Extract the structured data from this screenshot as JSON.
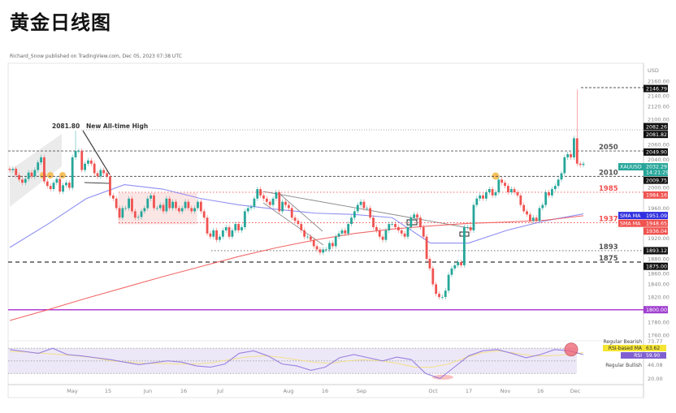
{
  "title": "黄金日线图",
  "attribution": "Richard_Snow published on TradingView.com, Dec 05, 2023 07:38 UTC",
  "currency": "USD",
  "chart_data": {
    "type": "candlestick",
    "symbol": "XAUUSD",
    "title": "黄金日线图",
    "ylim": [
      1750,
      2170
    ],
    "y_ticks": [
      "2160.00",
      "2140.00",
      "2120.00",
      "2100.00",
      "2060.00",
      "2040.00",
      "2000.00",
      "1960.00",
      "1920.00",
      "1880.00",
      "1860.00",
      "1840.00",
      "1820.00",
      "1780.00",
      "1760.00"
    ],
    "x_ticks": [
      "May",
      "15",
      "Jun",
      "16",
      "Jul",
      "Aug",
      "16",
      "Sep",
      "Oct",
      "17",
      "Nov",
      "16",
      "Dec"
    ],
    "closes": [
      2020,
      2022,
      2012,
      2005,
      2000,
      2006,
      2016,
      2010,
      2020,
      2032,
      2040,
      2002,
      1995,
      1990,
      2000,
      2006,
      1986,
      1996,
      2000,
      1992,
      2040,
      2050,
      2050,
      2020,
      2030,
      2035,
      2030,
      2015,
      2010,
      2020,
      2015,
      2010,
      1980,
      1975,
      1960,
      1945,
      1960,
      1960,
      1975,
      1955,
      1945,
      1946,
      1955,
      1960,
      1975,
      1980,
      1960,
      1960,
      1965,
      1955,
      1975,
      1960,
      1970,
      1960,
      1955,
      1960,
      1970,
      1960,
      1955,
      1960,
      1970,
      1955,
      1945,
      1920,
      1915,
      1925,
      1910,
      1915,
      1925,
      1930,
      1915,
      1925,
      1935,
      1925,
      1930,
      1955,
      1960,
      1962,
      1975,
      1990,
      1980,
      1975,
      1970,
      1965,
      1975,
      1985,
      1955,
      1970,
      1965,
      1960,
      1945,
      1940,
      1935,
      1925,
      1915,
      1915,
      1910,
      1900,
      1895,
      1890,
      1895,
      1895,
      1905,
      1900,
      1915,
      1920,
      1925,
      1920,
      1935,
      1945,
      1955,
      1965,
      1970,
      1960,
      1960,
      1945,
      1930,
      1925,
      1915,
      1910,
      1925,
      1935,
      1935,
      1930,
      1925,
      1920,
      1915,
      1930,
      1945,
      1950,
      1945,
      1930,
      1915,
      1880,
      1865,
      1840,
      1825,
      1820,
      1820,
      1830,
      1855,
      1865,
      1870,
      1875,
      1870,
      1930,
      1930,
      1925,
      1965,
      1975,
      1980,
      1975,
      1985,
      1990,
      1980,
      1985,
      2005,
      2000,
      1995,
      1985,
      1990,
      1985,
      1980,
      1965,
      1955,
      1950,
      1940,
      1945,
      1940,
      1960,
      1965,
      1985,
      1980,
      1990,
      1995,
      2005,
      2015,
      2040,
      2045,
      2040,
      2070,
      2030,
      2028,
      2030
    ],
    "special_highs": {
      "all_time_high_may": 2081.8,
      "dec_spike": 2146.79
    },
    "moving_averages": [
      {
        "name": "SMA MA",
        "color": "#7b7bf0",
        "last": "1951.09",
        "values": [
          1898,
          1935,
          1975,
          1997,
          1990,
          1975,
          1965,
          1958,
          1952,
          1950,
          1945,
          1905,
          1905,
          1925,
          1940,
          1951
        ]
      },
      {
        "name": "SMA MA",
        "color": "#f05050",
        "last": "1948.65",
        "values": [
          1783,
          1800,
          1818,
          1835,
          1852,
          1868,
          1884,
          1898,
          1910,
          1920,
          1927,
          1932,
          1936,
          1938,
          1941,
          1948
        ]
      }
    ],
    "levels": [
      {
        "label": "2050",
        "value": 2050,
        "badge": "2049.90",
        "color": "#555"
      },
      {
        "label": "2010",
        "value": 2010,
        "badge": "2009.75",
        "color": "#555"
      },
      {
        "label": "1985",
        "value": 1985,
        "badge": "1984.16",
        "color": "#f05050"
      },
      {
        "label": "1937",
        "value": 1937,
        "badge": "1936.04",
        "color": "#f05050"
      },
      {
        "label": "1893",
        "value": 1893,
        "badge": "1893.12",
        "color": "#555"
      },
      {
        "label": "1875",
        "value": 1875,
        "badge": "1875.00",
        "color": "#555"
      },
      {
        "label": "",
        "value": 1800,
        "badge": "1800.00",
        "color": "#b040d0"
      }
    ],
    "high_badges": [
      "2146.79",
      "2082.26",
      "2081.82"
    ],
    "last_price": {
      "symbol": "XAUUSD",
      "value": "2032.29",
      "countdown": "14:21:29",
      "color": "#26a69a"
    },
    "annotation": {
      "price": "2081.80",
      "text": "New All-time High"
    },
    "rsi": {
      "name": "RSI",
      "last": "59.90",
      "ma_name": "RSI-based MA",
      "ma_last": "63.62",
      "ylim": [
        20,
        80
      ],
      "bands": [
        30,
        50,
        70
      ],
      "axis_labels": [
        "73.77",
        "46.08",
        "20.00"
      ],
      "divergence_labels": [
        "Regular Bearish",
        "Regular Bullish"
      ],
      "values": [
        68,
        65,
        62,
        70,
        60,
        58,
        55,
        52,
        48,
        44,
        47,
        50,
        48,
        42,
        40,
        45,
        62,
        66,
        58,
        45,
        42,
        35,
        40,
        55,
        60,
        55,
        50,
        56,
        52,
        30,
        22,
        40,
        58,
        66,
        68,
        62,
        55,
        60,
        68,
        66,
        60
      ],
      "ma_values": [
        65,
        64,
        62,
        60,
        58,
        55,
        50,
        48,
        46,
        46,
        45,
        45,
        47,
        52,
        56,
        58,
        56,
        52,
        48,
        46,
        50,
        52,
        50,
        46,
        40,
        40,
        45,
        55,
        63,
        66,
        62,
        58,
        58,
        60,
        63
      ]
    }
  }
}
